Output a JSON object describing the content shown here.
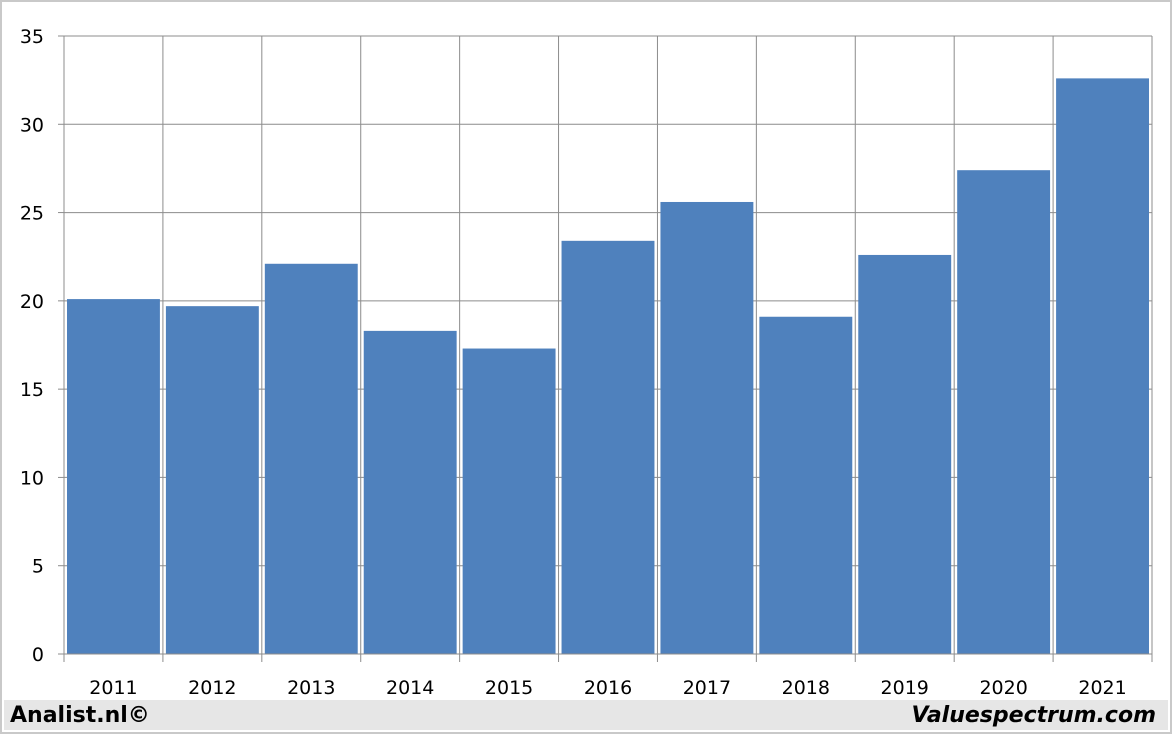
{
  "footer": {
    "left_text": "Analist.nl©",
    "right_text": "Valuespectrum.com"
  },
  "chart_data": {
    "type": "bar",
    "categories": [
      "2011",
      "2012",
      "2013",
      "2014",
      "2015",
      "2016",
      "2017",
      "2018",
      "2019",
      "2020",
      "2021"
    ],
    "values": [
      20.1,
      19.7,
      22.1,
      18.3,
      17.3,
      23.4,
      25.6,
      19.1,
      22.6,
      27.4,
      32.6
    ],
    "title": "",
    "xlabel": "",
    "ylabel": "",
    "ylim": [
      0,
      35
    ],
    "yticks": [
      "0",
      "5",
      "10",
      "15",
      "20",
      "25",
      "30",
      "35"
    ],
    "grid": true,
    "legend": "none",
    "colors": {
      "bar": "#4f81bd",
      "grid": "#8c8c8c",
      "footer_bg": "#e6e6e6"
    }
  }
}
